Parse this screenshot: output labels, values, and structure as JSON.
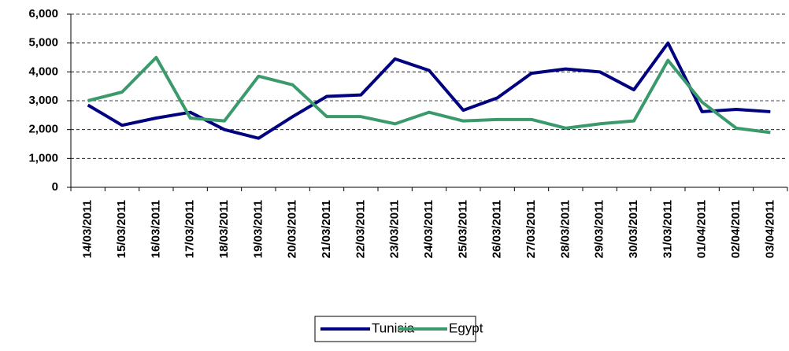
{
  "chart_data": {
    "type": "line",
    "categories": [
      "14/03/2011",
      "15/03/2011",
      "16/03/2011",
      "17/03/2011",
      "18/03/2011",
      "19/03/2011",
      "20/03/2011",
      "21/03/2011",
      "22/03/2011",
      "23/03/2011",
      "24/03/2011",
      "25/03/2011",
      "26/03/2011",
      "27/03/2011",
      "28/03/2011",
      "29/03/2011",
      "30/03/2011",
      "31/03/2011",
      "01/04/2011",
      "02/04/2011",
      "03/04/2011"
    ],
    "series": [
      {
        "name": "Tunisia",
        "color": "#000080",
        "values": [
          2850,
          2150,
          2400,
          2600,
          2000,
          1700,
          2450,
          3150,
          3200,
          4450,
          4050,
          2670,
          3100,
          3950,
          4100,
          4000,
          3380,
          5000,
          2620,
          2700,
          2620
        ]
      },
      {
        "name": "Egypt",
        "color": "#3a9a6c",
        "values": [
          3000,
          3300,
          4500,
          2400,
          2300,
          3850,
          3550,
          2450,
          2450,
          2200,
          2600,
          2300,
          2350,
          2350,
          2050,
          2200,
          2300,
          4400,
          2950,
          2050,
          1900
        ]
      }
    ],
    "ylim": [
      0,
      6000
    ],
    "yticks": [
      0,
      {
        "value": 1000,
        "label": "1,000"
      },
      {
        "value": 2000,
        "label": "2,000"
      },
      {
        "value": 3000,
        "label": "3,000"
      },
      {
        "value": 4000,
        "label": "4,000"
      },
      {
        "value": 5000,
        "label": "5,000"
      },
      {
        "value": 6000,
        "label": "6,000"
      }
    ],
    "grid": true
  }
}
